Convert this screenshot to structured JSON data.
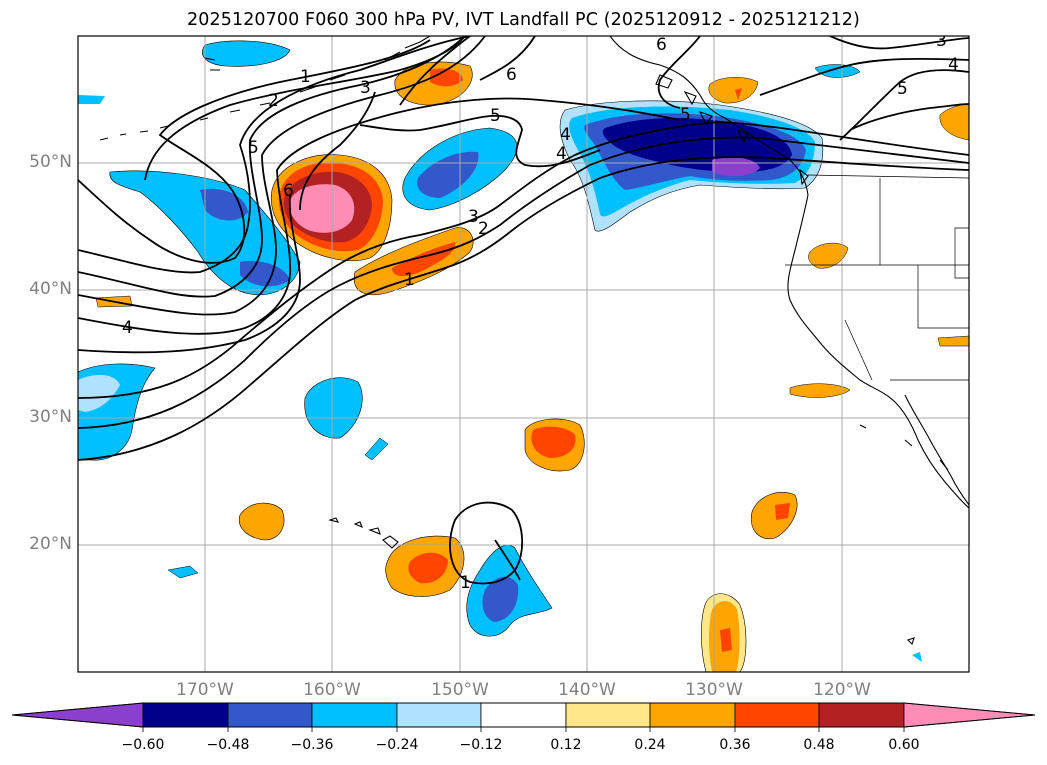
{
  "title": "2025120700 F060 300 hPa PV, IVT Landfall PC (2025120912 - 2025121212)",
  "map": {
    "latitude_labels": [
      "50°N",
      "40°N",
      "30°N",
      "20°N"
    ],
    "longitude_labels": [
      "170°W",
      "160°W",
      "150°W",
      "140°W",
      "130°W",
      "120°W"
    ],
    "contour_labels": [
      "1",
      "2",
      "3",
      "4",
      "5",
      "6",
      "5",
      "6",
      "5",
      "4",
      "3",
      "2",
      "1",
      "6",
      "3",
      "4",
      "5",
      "4",
      "1"
    ],
    "gridlines": true
  },
  "colorbar": {
    "ticks": [
      "−0.60",
      "−0.48",
      "−0.36",
      "−0.24",
      "−0.12",
      "0.12",
      "0.24",
      "0.36",
      "0.48",
      "0.60"
    ],
    "colors": [
      "#8b3fcf",
      "#00008b",
      "#3358cc",
      "#00bfff",
      "#b0e2ff",
      "#ffffff",
      "#ffe78a",
      "#ffa500",
      "#ff4500",
      "#b22222",
      "#ff8cb4"
    ],
    "extend": "both"
  }
}
